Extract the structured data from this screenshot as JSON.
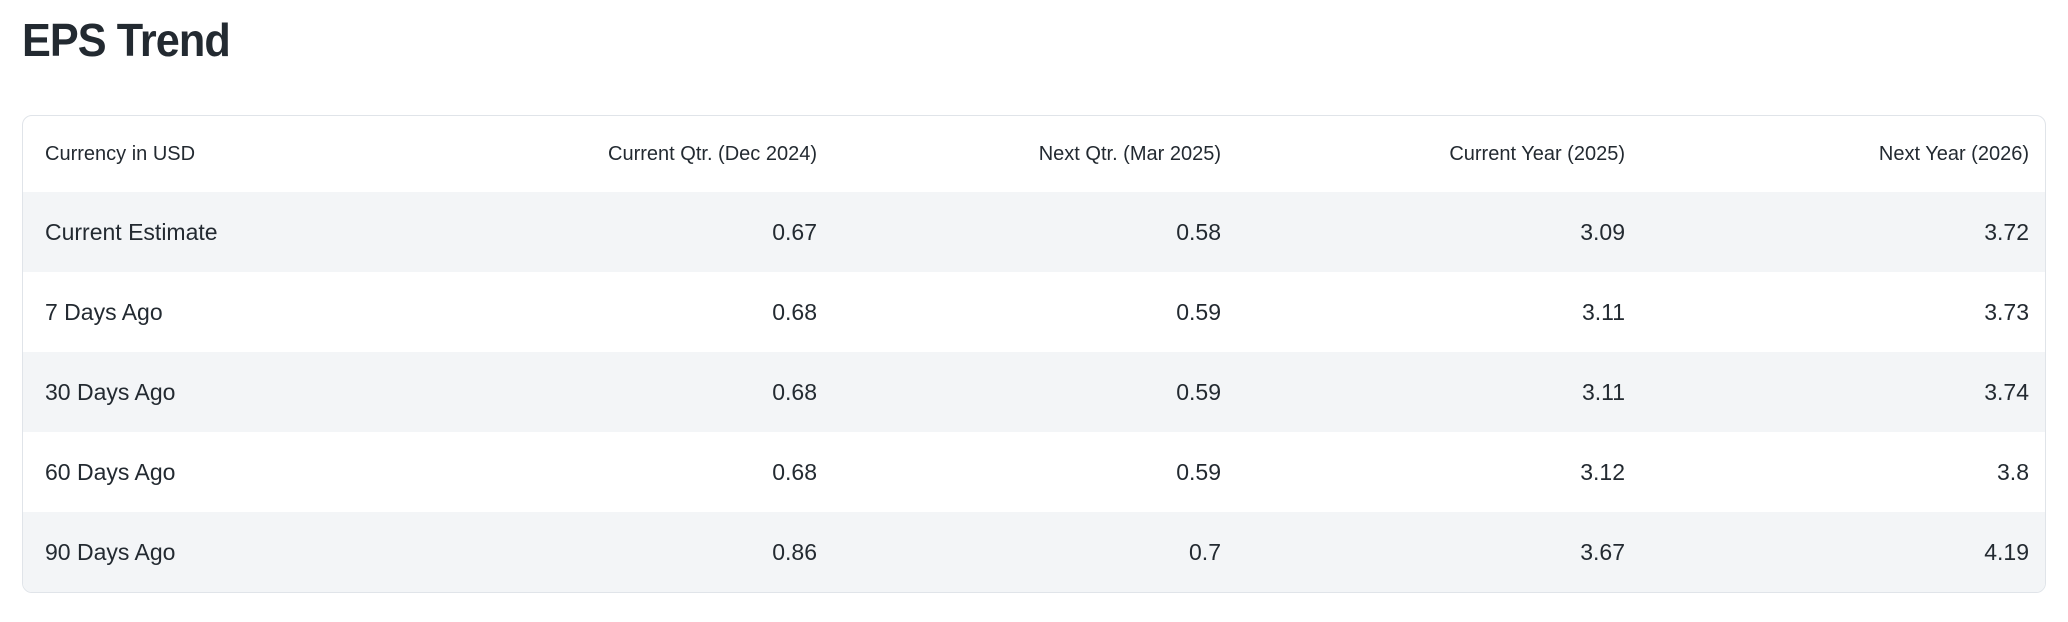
{
  "title": "EPS Trend",
  "table": {
    "currency_label": "Currency in USD",
    "columns": [
      "Current Qtr. (Dec 2024)",
      "Next Qtr. (Mar 2025)",
      "Current Year (2025)",
      "Next Year (2026)"
    ],
    "rows": [
      {
        "label": "Current Estimate",
        "values": [
          "0.67",
          "0.58",
          "3.09",
          "3.72"
        ]
      },
      {
        "label": "7 Days Ago",
        "values": [
          "0.68",
          "0.59",
          "3.11",
          "3.73"
        ]
      },
      {
        "label": "30 Days Ago",
        "values": [
          "0.68",
          "0.59",
          "3.11",
          "3.74"
        ]
      },
      {
        "label": "60 Days Ago",
        "values": [
          "0.68",
          "0.59",
          "3.12",
          "3.8"
        ]
      },
      {
        "label": "90 Days Ago",
        "values": [
          "0.86",
          "0.7",
          "3.67",
          "4.19"
        ]
      }
    ]
  },
  "colors": {
    "text": "#232a31",
    "row_stripe": "#f3f5f7",
    "card_border": "#e0e4e9",
    "card_background": "#ffffff",
    "page_background": "#ffffff"
  }
}
